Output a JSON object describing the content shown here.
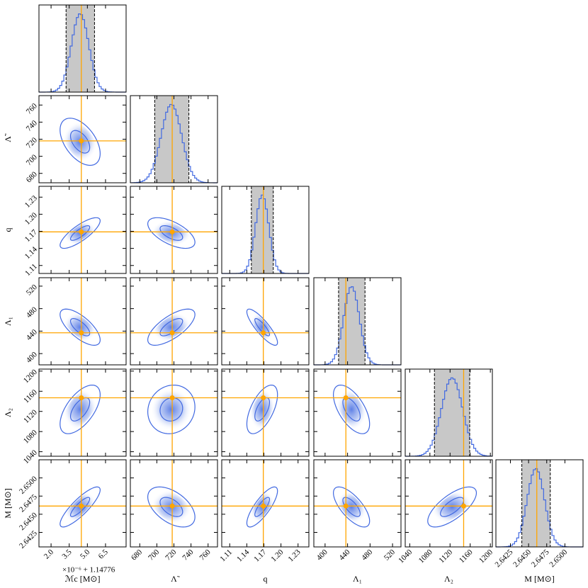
{
  "chart_data": {
    "type": "corner",
    "line_color": "#4169e1",
    "truth_color": "#ffa500",
    "interval_color": "#c8c8c8",
    "parameters": [
      {
        "label": "ℳc [M⊙]",
        "offset": "×10⁻⁶ + 1.14776",
        "lim": [
          1.0,
          8.2
        ],
        "ticks": [
          {
            "value": 2,
            "label": "2.0"
          },
          {
            "value": 3.5,
            "label": "3.5"
          },
          {
            "value": 5,
            "label": "5.0"
          },
          {
            "value": 6.5,
            "label": "6.5"
          }
        ],
        "truth": 4.5,
        "mean": 4.4,
        "sigma": 0.72,
        "interval": [
          3.24,
          5.59
        ]
      },
      {
        "label": "Λ̃",
        "lim": [
          669,
          771
        ],
        "ticks": [
          680,
          700,
          720,
          740,
          760
        ],
        "truth": 718,
        "mean": 717,
        "sigma": 12,
        "interval": [
          697.5,
          737.5
        ]
      },
      {
        "label": "q",
        "lim": [
          1.096,
          1.249
        ],
        "ticks": [
          1.11,
          1.14,
          1.17,
          {
            "value": 1.2,
            "label": "1.20"
          },
          1.23
        ],
        "truth": 1.169,
        "mean": 1.167,
        "sigma": 0.0117,
        "interval": [
          1.148,
          1.1865
        ]
      },
      {
        "label": "Λ₁",
        "lim": [
          380,
          535
        ],
        "ticks": [
          400,
          440,
          480,
          520
        ],
        "truth": 437,
        "mean": 447,
        "sigma": 14,
        "interval": [
          424,
          471
        ]
      },
      {
        "label": "Λ₂",
        "lim": [
          1031,
          1204
        ],
        "ticks": [
          1040,
          1080,
          1120,
          1160,
          1200
        ],
        "truth": 1147,
        "mean": 1124,
        "sigma": 21,
        "interval": [
          1089,
          1159
        ]
      },
      {
        "label": "M [M⊙]",
        "lim": [
          2.6405,
          2.6525
        ],
        "ticks": [
          2.6425,
          {
            "value": 2.645,
            "label": "2.6450"
          },
          2.6475,
          {
            "value": 2.65,
            "label": "2.6500"
          }
        ],
        "truth": 2.64613,
        "mean": 2.646,
        "sigma": 0.0012,
        "interval": [
          2.64407,
          2.64799
        ]
      }
    ],
    "correlation": [
      [],
      [
        -0.5
      ],
      [
        0.8,
        -0.6
      ],
      [
        -0.7,
        0.7,
        -0.85
      ],
      [
        0.6,
        0.1,
        0.6,
        -0.6
      ],
      [
        0.85,
        -0.5,
        0.8,
        -0.7,
        0.7
      ]
    ]
  }
}
